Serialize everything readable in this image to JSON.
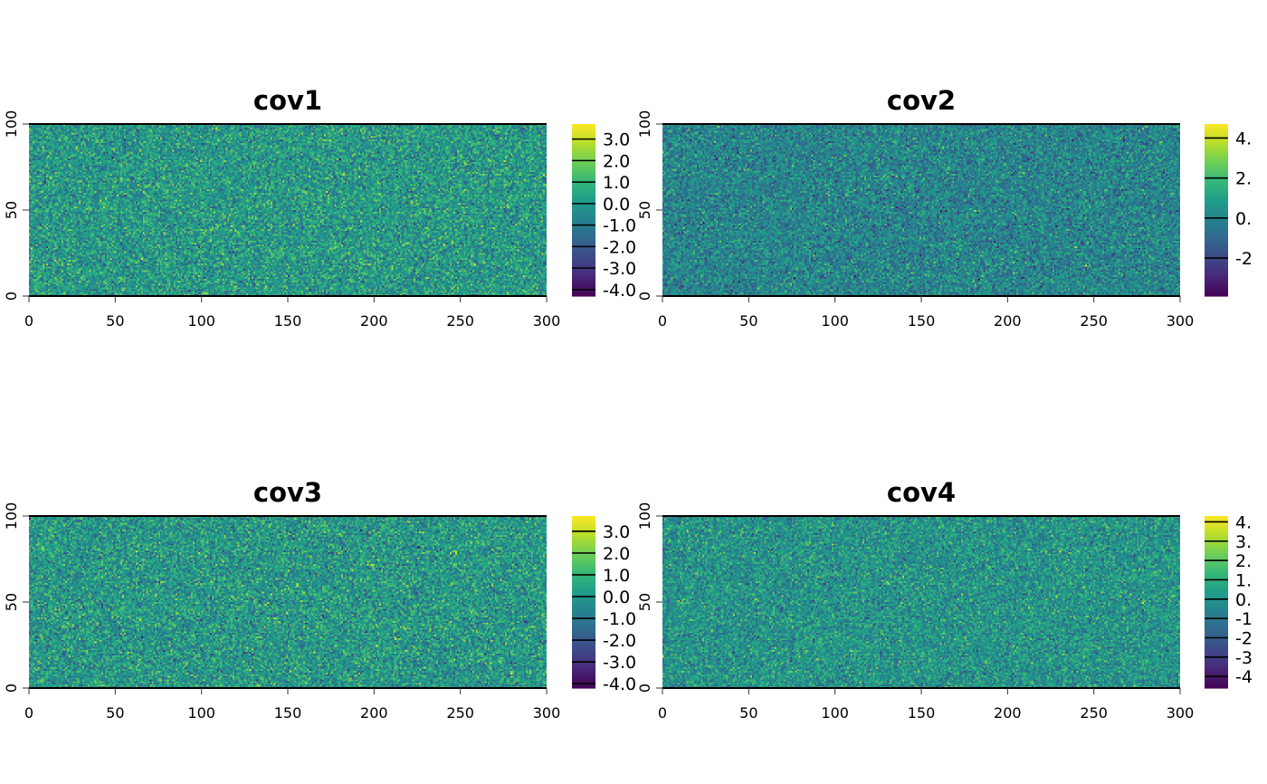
{
  "chart_data": [
    {
      "type": "heatmap",
      "title": "cov1",
      "xlim": [
        0,
        300
      ],
      "ylim": [
        0,
        100
      ],
      "x_ticks": [
        "0",
        "50",
        "100",
        "150",
        "200",
        "250",
        "300"
      ],
      "y_ticks": [
        "0",
        "50",
        "100"
      ],
      "grid": false,
      "legend": "right",
      "color_scale": "viridis",
      "value_range": [
        -4.3,
        3.7
      ],
      "legend_ticks": [
        "3.0",
        "2.0",
        "1.0",
        "0.0",
        "-1.0",
        "-2.0",
        "-3.0",
        "-4.0"
      ],
      "legend_tick_values": [
        3,
        2,
        1,
        0,
        -1,
        -2,
        -3,
        -4
      ]
    },
    {
      "type": "heatmap",
      "title": "cov2",
      "xlim": [
        0,
        300
      ],
      "ylim": [
        0,
        100
      ],
      "x_ticks": [
        "0",
        "50",
        "100",
        "150",
        "200",
        "250",
        "300"
      ],
      "y_ticks": [
        "0",
        "50",
        "100"
      ],
      "grid": false,
      "legend": "right",
      "color_scale": "viridis",
      "value_range": [
        -3.9,
        4.7
      ],
      "legend_ticks": [
        "4.",
        "2.",
        "0.",
        "-2"
      ],
      "legend_tick_values": [
        4,
        2,
        0,
        -2
      ]
    },
    {
      "type": "heatmap",
      "title": "cov3",
      "xlim": [
        0,
        300
      ],
      "ylim": [
        0,
        100
      ],
      "x_ticks": [
        "0",
        "50",
        "100",
        "150",
        "200",
        "250",
        "300"
      ],
      "y_ticks": [
        "0",
        "50",
        "100"
      ],
      "grid": false,
      "legend": "right",
      "color_scale": "viridis",
      "value_range": [
        -4.2,
        3.7
      ],
      "legend_ticks": [
        "3.0",
        "2.0",
        "1.0",
        "0.0",
        "-1.0",
        "-2.0",
        "-3.0",
        "-4.0"
      ],
      "legend_tick_values": [
        3,
        2,
        1,
        0,
        -1,
        -2,
        -3,
        -4
      ]
    },
    {
      "type": "heatmap",
      "title": "cov4",
      "xlim": [
        0,
        300
      ],
      "ylim": [
        0,
        100
      ],
      "x_ticks": [
        "0",
        "50",
        "100",
        "150",
        "200",
        "250",
        "300"
      ],
      "y_ticks": [
        "0",
        "50",
        "100"
      ],
      "grid": false,
      "legend": "right",
      "color_scale": "viridis",
      "value_range": [
        -4.6,
        4.3
      ],
      "legend_ticks": [
        "4.",
        "3.",
        "2.",
        "1.",
        "0.",
        "-1",
        "-2",
        "-3",
        "-4"
      ],
      "legend_tick_values": [
        4,
        3,
        2,
        1,
        0,
        -1,
        -2,
        -3,
        -4
      ]
    }
  ]
}
